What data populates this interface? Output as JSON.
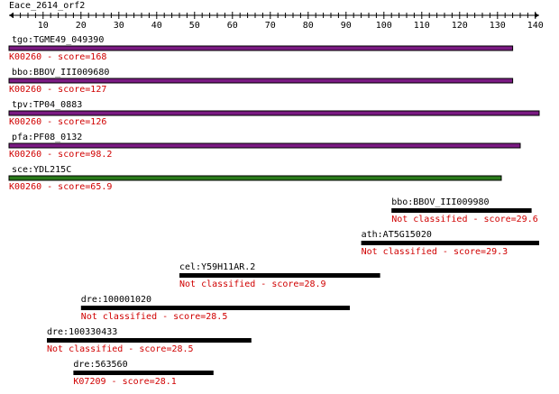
{
  "title": "Eace_2614_orf2",
  "axis": {
    "min": 1,
    "max": 141,
    "tick_labels": [
      "10",
      "20",
      "30",
      "40",
      "50",
      "60",
      "70",
      "80",
      "90",
      "100",
      "110",
      "120",
      "130",
      "140"
    ]
  },
  "colors": {
    "axis": "#000000",
    "score_text": "#d00000",
    "purple_bar": "#7a1a82",
    "green_bar": "#2a7a1a",
    "black_bar": "#000000",
    "bar_outline": "#000000"
  },
  "hits": [
    {
      "name": "tgo:TGME49_049390",
      "score_text": "K00260 - score=168",
      "start": 1,
      "end": 134,
      "color": "purple"
    },
    {
      "name": "bbo:BBOV_III009680",
      "score_text": "K00260 - score=127",
      "start": 1,
      "end": 134,
      "color": "purple"
    },
    {
      "name": "tpv:TP04_0883",
      "score_text": "K00260 - score=126",
      "start": 1,
      "end": 141,
      "color": "purple"
    },
    {
      "name": "pfa:PF08_0132",
      "score_text": "K00260 - score=98.2",
      "start": 1,
      "end": 136,
      "color": "purple"
    },
    {
      "name": "sce:YDL215C",
      "score_text": "K00260 - score=65.9",
      "start": 1,
      "end": 131,
      "color": "green"
    },
    {
      "name": "bbo:BBOV_III009980",
      "score_text": "Not classified - score=29.6",
      "start": 102,
      "end": 139,
      "color": "black"
    },
    {
      "name": "ath:AT5G15020",
      "score_text": "Not classified - score=29.3",
      "start": 94,
      "end": 141,
      "color": "black"
    },
    {
      "name": "cel:Y59H11AR.2",
      "score_text": "Not classified - score=28.9",
      "start": 46,
      "end": 99,
      "color": "black"
    },
    {
      "name": "dre:100001020",
      "score_text": "Not classified - score=28.5",
      "start": 20,
      "end": 91,
      "color": "black"
    },
    {
      "name": "dre:100330433",
      "score_text": "Not classified - score=28.5",
      "start": 11,
      "end": 65,
      "color": "black"
    },
    {
      "name": "dre:563560",
      "score_text": "K07209 - score=28.1",
      "start": 18,
      "end": 55,
      "color": "black"
    }
  ]
}
